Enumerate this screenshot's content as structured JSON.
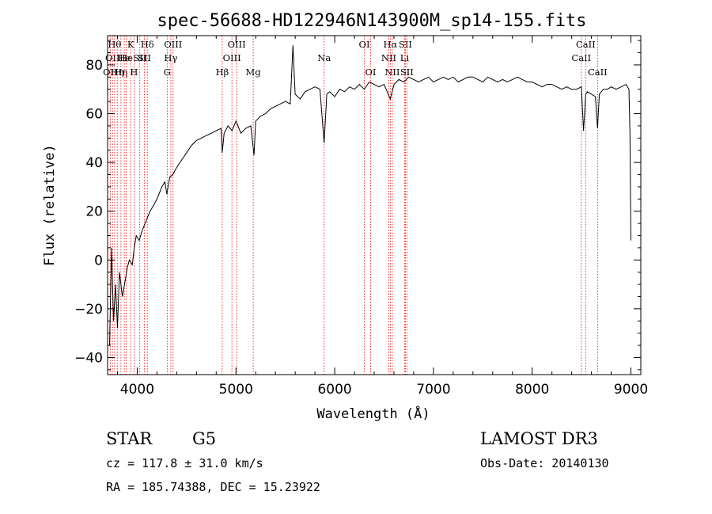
{
  "chart_data": {
    "type": "line",
    "title": "spec-56688-HD122946N143900M_sp14-155.fits",
    "xlabel": "Wavelength (Å)",
    "ylabel": "Flux (relative)",
    "xlim": [
      3700,
      9100
    ],
    "ylim": [
      -47,
      92
    ],
    "xticks": [
      4000,
      5000,
      6000,
      7000,
      8000,
      9000
    ],
    "yticks": [
      -40,
      -20,
      0,
      20,
      40,
      60,
      80
    ],
    "grid": false,
    "line_color": "#000000",
    "marker_color": "#ff0000",
    "series": [
      {
        "x": [
          3720,
          3740,
          3760,
          3780,
          3800,
          3820,
          3850,
          3880,
          3900,
          3920,
          3950,
          3970,
          3990,
          4020,
          4050,
          4080,
          4100,
          4130,
          4160,
          4200,
          4250,
          4280,
          4300,
          4330,
          4360,
          4400,
          4450,
          4500,
          4550,
          4600,
          4650,
          4700,
          4750,
          4800,
          4850,
          4861,
          4880,
          4920,
          4960,
          5000,
          5050,
          5100,
          5150,
          5183,
          5200,
          5250,
          5300,
          5350,
          5400,
          5450,
          5500,
          5550,
          5577,
          5600,
          5650,
          5700,
          5750,
          5800,
          5850,
          5893,
          5920,
          5950,
          6000,
          6050,
          6100,
          6150,
          6200,
          6250,
          6300,
          6350,
          6400,
          6450,
          6500,
          6563,
          6600,
          6650,
          6700,
          6750,
          6800,
          6850,
          6900,
          6950,
          7000,
          7050,
          7100,
          7150,
          7200,
          7250,
          7300,
          7350,
          7400,
          7450,
          7500,
          7550,
          7600,
          7650,
          7700,
          7750,
          7800,
          7850,
          7900,
          7950,
          8000,
          8050,
          8100,
          8150,
          8200,
          8250,
          8300,
          8350,
          8400,
          8450,
          8498,
          8520,
          8542,
          8560,
          8600,
          8640,
          8662,
          8680,
          8720,
          8760,
          8800,
          8850,
          8900,
          8950,
          8980,
          8990,
          9000
        ],
        "y": [
          -35,
          5,
          -25,
          -10,
          -28,
          -5,
          -15,
          -8,
          -3,
          0,
          -2,
          5,
          10,
          8,
          12,
          15,
          17,
          20,
          22,
          25,
          30,
          32,
          27,
          34,
          35,
          38,
          41,
          44,
          47,
          49,
          50,
          51,
          52,
          53,
          54,
          44,
          52,
          55,
          53,
          57,
          52,
          54,
          55,
          43,
          57,
          59,
          60,
          62,
          63,
          64,
          65,
          64,
          88,
          68,
          66,
          69,
          70,
          71,
          70,
          48,
          68,
          69,
          67,
          70,
          69,
          71,
          70,
          72,
          70,
          73,
          72,
          71,
          72,
          66,
          72,
          74,
          73,
          75,
          74,
          73,
          74,
          75,
          73,
          74,
          75,
          74,
          75,
          73,
          74,
          75,
          75,
          74,
          73,
          75,
          74,
          73,
          74,
          73,
          74,
          75,
          74,
          73,
          73,
          72,
          71,
          72,
          72,
          71,
          70,
          71,
          70,
          70,
          71,
          53,
          68,
          69,
          68,
          67,
          54,
          68,
          70,
          70,
          71,
          70,
          71,
          72,
          70,
          52,
          8
        ]
      }
    ],
    "lines": [
      {
        "w": 3727,
        "label": "OII",
        "row": 2
      },
      {
        "w": 3750,
        "label": "OII",
        "row": 1
      },
      {
        "w": 3771,
        "label": "Hθ",
        "row": 0
      },
      {
        "w": 3798,
        "label": "Hη",
        "row": 2
      },
      {
        "w": 3835,
        "label": "Hη",
        "row": 2
      },
      {
        "w": 3869,
        "label": "He",
        "row": 1
      },
      {
        "w": 3889,
        "label": "He",
        "row": 1
      },
      {
        "w": 3934,
        "label": "K",
        "row": 0
      },
      {
        "w": 3968,
        "label": "H",
        "row": 2
      },
      {
        "w": 4026,
        "label": "SII",
        "row": 1
      },
      {
        "w": 4072,
        "label": "SII",
        "row": 1
      },
      {
        "w": 4102,
        "label": "Hδ",
        "row": 0
      },
      {
        "w": 4304,
        "label": "G",
        "row": 2
      },
      {
        "w": 4340,
        "label": "Hγ",
        "row": 1
      },
      {
        "w": 4363,
        "label": "OIII",
        "row": 0
      },
      {
        "w": 4861,
        "label": "Hβ",
        "row": 2
      },
      {
        "w": 4959,
        "label": "OIII",
        "row": 1
      },
      {
        "w": 5007,
        "label": "OIII",
        "row": 0
      },
      {
        "w": 5175,
        "label": "Mg",
        "row": 2
      },
      {
        "w": 5893,
        "label": "Na",
        "row": 1
      },
      {
        "w": 6300,
        "label": "OI",
        "row": 0
      },
      {
        "w": 6364,
        "label": "OI",
        "row": 2
      },
      {
        "w": 6548,
        "label": "NII",
        "row": 1
      },
      {
        "w": 6563,
        "label": "Hα",
        "row": 0
      },
      {
        "w": 6583,
        "label": "NII",
        "row": 2
      },
      {
        "w": 6708,
        "label": "Li",
        "row": 1
      },
      {
        "w": 6716,
        "label": "SII",
        "row": 0
      },
      {
        "w": 6731,
        "label": "SII",
        "row": 2
      },
      {
        "w": 8498,
        "label": "CaII",
        "row": 1
      },
      {
        "w": 8542,
        "label": "CaII",
        "row": 0
      },
      {
        "w": 8662,
        "label": "CaII",
        "row": 2
      }
    ]
  },
  "info": {
    "object_class": "STAR",
    "subclass": "G5",
    "survey": "LAMOST DR3",
    "redshift": "cz = 117.8 ± 31.0 km/s",
    "obs_date": "Obs-Date: 20140130",
    "coords": "RA = 185.74388, DEC =  15.23922"
  }
}
